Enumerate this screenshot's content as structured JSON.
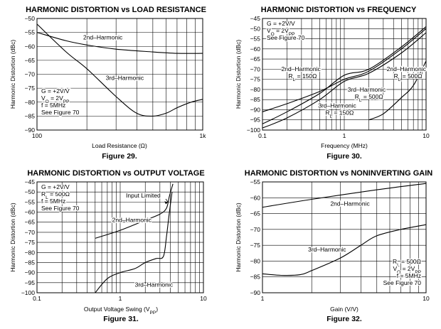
{
  "chart_data": [
    {
      "type": "line",
      "title": "HARMONIC DISTORTION vs LOAD RESISTANCE",
      "figure": "Figure 29.",
      "xlabel": "Load Resistance (Ω)",
      "ylabel": "Harmonic Distortion (dBc)",
      "xscale": "log",
      "xlim": [
        100,
        1000
      ],
      "ylim": [
        -90,
        -50
      ],
      "x_ticks": [
        {
          "v": 100,
          "label": "100"
        },
        {
          "v": 1000,
          "label": "1k"
        }
      ],
      "y_ticks": [
        -50,
        -55,
        -60,
        -65,
        -70,
        -75,
        -80,
        -85,
        -90
      ],
      "conditions": [
        "G = +2V/V",
        "V_O = 2V_PP",
        "f = 5MHz",
        "See Figure 70"
      ],
      "series": [
        {
          "name": "2nd–Harmonic",
          "points": [
            [
              100,
              -55
            ],
            [
              150,
              -58
            ],
            [
              200,
              -59.5
            ],
            [
              300,
              -61
            ],
            [
              500,
              -62
            ],
            [
              700,
              -62.5
            ],
            [
              1000,
              -62.5
            ]
          ]
        },
        {
          "name": "3rd–Harmonic",
          "points": [
            [
              100,
              -52
            ],
            [
              150,
              -62
            ],
            [
              200,
              -68
            ],
            [
              300,
              -78
            ],
            [
              400,
              -84
            ],
            [
              500,
              -85
            ],
            [
              600,
              -84
            ],
            [
              700,
              -82
            ],
            [
              850,
              -80
            ],
            [
              1000,
              -79
            ]
          ]
        }
      ],
      "labels": [
        {
          "text": "2nd–Harmonic",
          "at": [
            190,
            -57.5
          ]
        },
        {
          "text": "3rd–Harmonic",
          "at": [
            260,
            -72
          ]
        }
      ]
    },
    {
      "type": "line",
      "title": "HARMONIC DISTORTION vs FREQUENCY",
      "figure": "Figure 30.",
      "xlabel": "Frequency (MHz)",
      "ylabel": "Harmonic Distortion (dBc)",
      "xscale": "log",
      "xlim": [
        0.1,
        10
      ],
      "ylim": [
        -100,
        -45
      ],
      "x_ticks": [
        {
          "v": 0.1,
          "label": "0.1"
        },
        {
          "v": 1,
          "label": "1"
        },
        {
          "v": 10,
          "label": "10"
        }
      ],
      "y_ticks": [
        -45,
        -50,
        -55,
        -60,
        -65,
        -70,
        -75,
        -80,
        -85,
        -90,
        -95,
        -100
      ],
      "conditions": [
        "G = +2V/V",
        "V_O = 2V_PP",
        "See Figure 70"
      ],
      "series": [
        {
          "name": "2nd–Harmonic, RL = 150Ω",
          "points": [
            [
              0.1,
              -91
            ],
            [
              0.2,
              -87
            ],
            [
              0.5,
              -81
            ],
            [
              1,
              -75
            ],
            [
              2,
              -71
            ],
            [
              5,
              -60
            ],
            [
              10,
              -50
            ]
          ]
        },
        {
          "name": "2nd–Harmonic, RL = 500Ω",
          "points": [
            [
              0.1,
              -97
            ],
            [
              0.2,
              -91
            ],
            [
              0.5,
              -82
            ],
            [
              1,
              -73
            ],
            [
              2,
              -70
            ],
            [
              5,
              -59
            ],
            [
              10,
              -49
            ]
          ]
        },
        {
          "name": "3rd–Harmonic, RL = 150Ω",
          "points": [
            [
              0.1,
              -99
            ],
            [
              0.2,
              -94
            ],
            [
              0.5,
              -85
            ],
            [
              1,
              -76
            ],
            [
              2,
              -72
            ],
            [
              5,
              -62
            ],
            [
              10,
              -52
            ]
          ]
        },
        {
          "name": "3rd–Harmonic, RL = 500Ω",
          "points": [
            [
              2,
              -95
            ],
            [
              3,
              -92
            ],
            [
              5,
              -84
            ],
            [
              7,
              -78
            ],
            [
              10,
              -66
            ]
          ]
        }
      ],
      "labels": [
        {
          "text": "2nd–Harmonic",
          "sub": "RL = 150Ω",
          "at": [
            0.17,
            -71
          ]
        },
        {
          "text": "2nd–Harmonic",
          "sub": "RL = 500Ω",
          "at": [
            3.3,
            -71
          ]
        },
        {
          "text": "3rd–Harmonic",
          "sub": "RL = 500Ω",
          "at": [
            1.1,
            -81
          ]
        },
        {
          "text": "3rd–Harmonic",
          "sub": "RL = 150Ω",
          "at": [
            0.48,
            -89
          ]
        }
      ]
    },
    {
      "type": "line",
      "title": "HARMONIC DISTORTION vs OUTPUT VOLTAGE",
      "figure": "Figure 31.",
      "xlabel": "Output Voltage Swing (V_PP)",
      "ylabel": "Harmonic Distortion (dBc)",
      "xscale": "log",
      "xlim": [
        0.1,
        10
      ],
      "ylim": [
        -100,
        -45
      ],
      "x_ticks": [
        {
          "v": 0.1,
          "label": "0.1"
        },
        {
          "v": 1,
          "label": "1"
        },
        {
          "v": 10,
          "label": "10"
        }
      ],
      "y_ticks": [
        -45,
        -50,
        -55,
        -60,
        -65,
        -70,
        -75,
        -80,
        -85,
        -90,
        -95,
        -100
      ],
      "conditions": [
        "G = +2V/V",
        "RL = 500Ω",
        "f = 5MHz",
        "See Figure 70"
      ],
      "annotation": "Input Limited",
      "series": [
        {
          "name": "2nd–Harmonic",
          "points": [
            [
              0.5,
              -73
            ],
            [
              1,
              -69
            ],
            [
              2,
              -64
            ],
            [
              3,
              -61
            ],
            [
              3.6,
              -58
            ],
            [
              3.9,
              -52
            ],
            [
              4.3,
              -46
            ]
          ]
        },
        {
          "name": "3rd–Harmonic",
          "points": [
            [
              0.5,
              -100
            ],
            [
              0.7,
              -93
            ],
            [
              1,
              -90
            ],
            [
              1.5,
              -88
            ],
            [
              2,
              -85
            ],
            [
              2.7,
              -83
            ],
            [
              3.3,
              -82
            ],
            [
              3.6,
              -72
            ],
            [
              3.9,
              -60
            ],
            [
              4.2,
              -50
            ]
          ]
        }
      ],
      "labels": [
        {
          "text": "2nd–Harmonic",
          "at": [
            0.8,
            -65
          ]
        },
        {
          "text": "3rd–Harmonic",
          "at": [
            1.5,
            -97
          ]
        }
      ]
    },
    {
      "type": "line",
      "title": "HARMONIC DISTORTION vs NONINVERTING GAIN",
      "figure": "Figure 32.",
      "xlabel": "Gain (V/V)",
      "ylabel": "Harmonic Distortion (dBc)",
      "xscale": "log",
      "xlim": [
        1,
        10
      ],
      "ylim": [
        -90,
        -55
      ],
      "x_ticks": [
        {
          "v": 1,
          "label": "1"
        },
        {
          "v": 10,
          "label": "10"
        }
      ],
      "y_ticks": [
        -55,
        -60,
        -65,
        -70,
        -75,
        -80,
        -85,
        -90
      ],
      "conditions": [
        "RL = 500Ω",
        "V_O = 2V_PP",
        "f = 5MHz",
        "See Figure 70"
      ],
      "series": [
        {
          "name": "2nd–Harmonic",
          "points": [
            [
              1,
              -63
            ],
            [
              2,
              -60.5
            ],
            [
              5,
              -57.5
            ],
            [
              10,
              -55.5
            ]
          ]
        },
        {
          "name": "3rd–Harmonic",
          "points": [
            [
              1,
              -84
            ],
            [
              1.3,
              -84.5
            ],
            [
              1.7,
              -84.3
            ],
            [
              2,
              -83
            ],
            [
              3,
              -79
            ],
            [
              4,
              -75
            ],
            [
              5,
              -72
            ],
            [
              7,
              -70
            ],
            [
              10,
              -68.5
            ]
          ]
        }
      ],
      "labels": [
        {
          "text": "2nd–Harmonic",
          "at": [
            2.6,
            -62.5
          ]
        },
        {
          "text": "3rd–Harmonic",
          "at": [
            1.9,
            -77
          ]
        }
      ]
    }
  ]
}
